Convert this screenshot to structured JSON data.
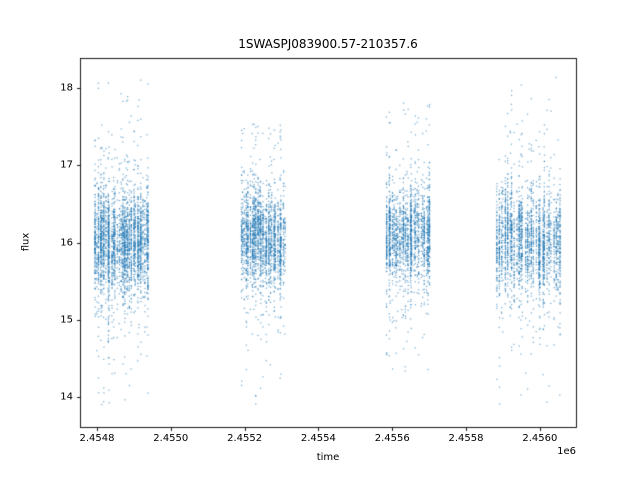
{
  "chart_data": {
    "type": "scatter",
    "title": "1SWASPJ083900.57-210357.6",
    "xlabel": "time",
    "ylabel": "flux",
    "x_offset_label": "1e6",
    "xlim": [
      2454754,
      2456098
    ],
    "ylim": [
      13.61,
      18.39
    ],
    "x_ticks": [
      {
        "value": 2454800,
        "label": "2.4548"
      },
      {
        "value": 2455000,
        "label": "2.4550"
      },
      {
        "value": 2455200,
        "label": "2.4552"
      },
      {
        "value": 2455400,
        "label": "2.4554"
      },
      {
        "value": 2455600,
        "label": "2.4556"
      },
      {
        "value": 2455800,
        "label": "2.4558"
      },
      {
        "value": 2456000,
        "label": "2.4560"
      }
    ],
    "y_ticks": [
      {
        "value": 14,
        "label": "14"
      },
      {
        "value": 15,
        "label": "15"
      },
      {
        "value": 16,
        "label": "16"
      },
      {
        "value": 17,
        "label": "17"
      },
      {
        "value": 18,
        "label": "18"
      }
    ],
    "marker_color": "#1f77b4",
    "marker_alpha": 0.65,
    "marker_size": 1.2,
    "background": "#ffffff",
    "axis_color": "#000000",
    "seed": 42,
    "clusters": [
      {
        "x_start": 2454792,
        "x_end": 2454942,
        "nights": 30,
        "points_per_night": 95,
        "y_mean": 16.0,
        "y_sigma": 0.42,
        "y_min": 13.88,
        "y_max": 18.22
      },
      {
        "x_start": 2455188,
        "x_end": 2455312,
        "nights": 25,
        "points_per_night": 80,
        "y_mean": 16.05,
        "y_sigma": 0.38,
        "y_min": 13.88,
        "y_max": 17.55
      },
      {
        "x_start": 2455584,
        "x_end": 2455704,
        "nights": 25,
        "points_per_night": 80,
        "y_mean": 16.1,
        "y_sigma": 0.4,
        "y_min": 14.25,
        "y_max": 17.9
      },
      {
        "x_start": 2455880,
        "x_end": 2456058,
        "nights": 30,
        "points_per_night": 80,
        "y_mean": 16.0,
        "y_sigma": 0.42,
        "y_min": 13.85,
        "y_max": 18.15
      }
    ]
  }
}
